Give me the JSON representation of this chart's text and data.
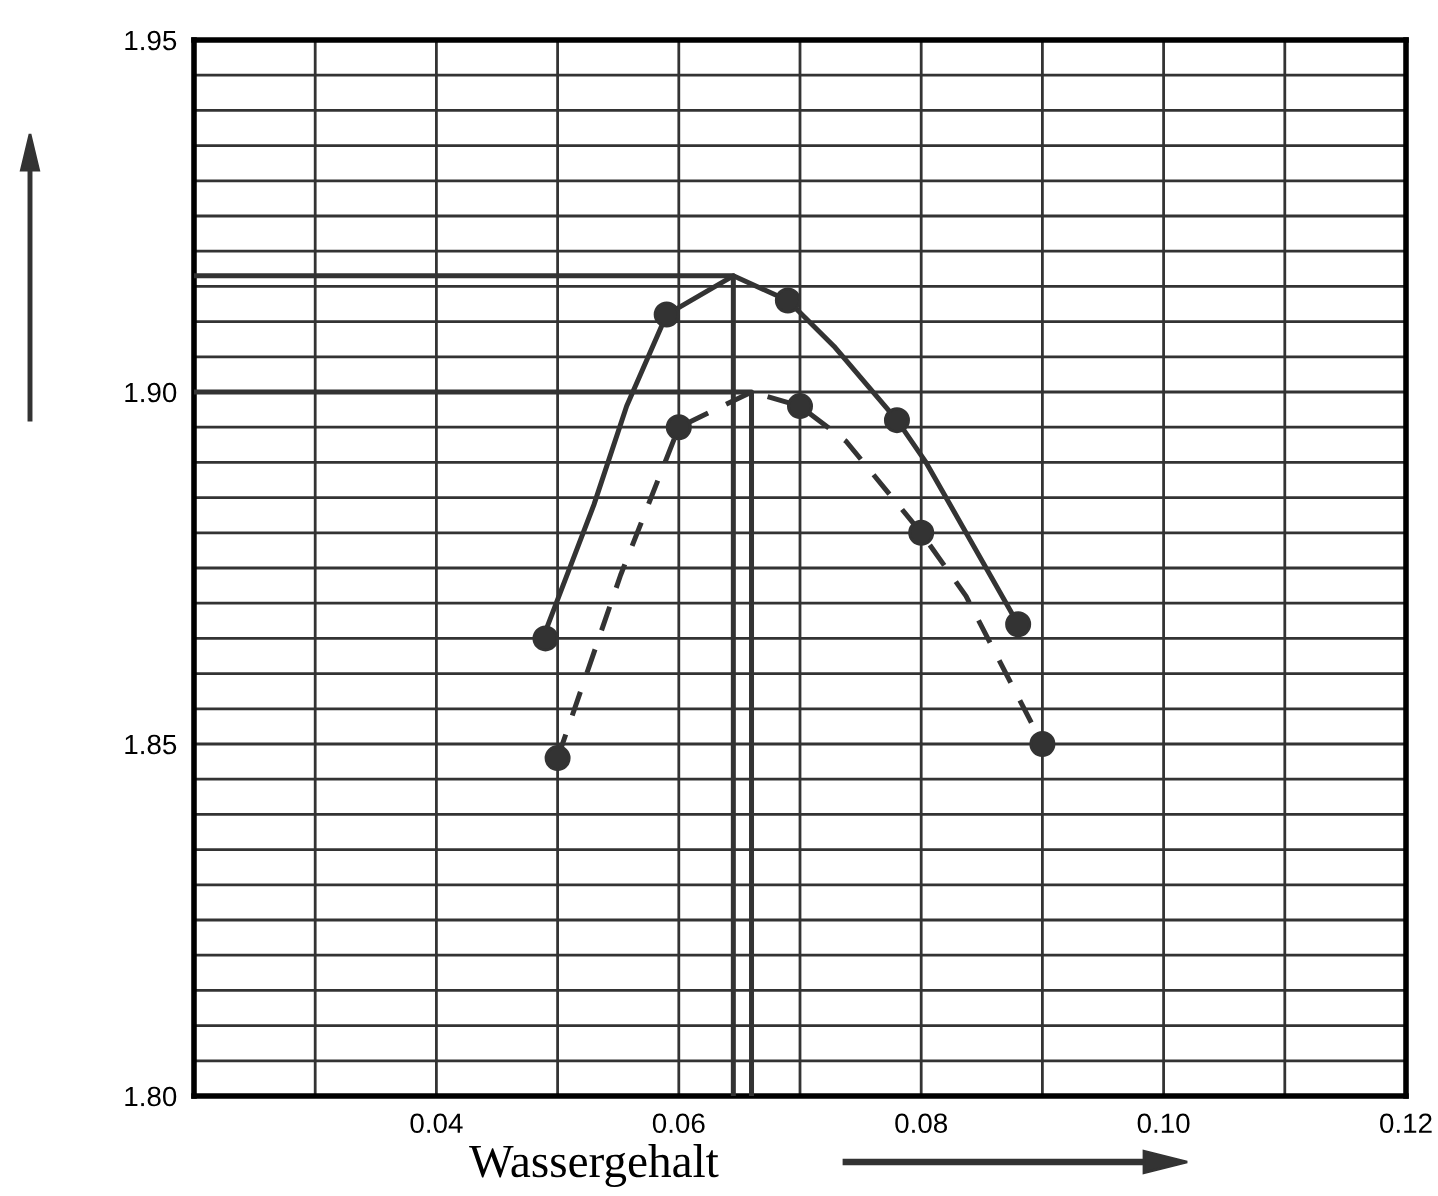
{
  "chart_data": {
    "type": "scatter",
    "xlabel": "Wassergehalt",
    "series": [
      {
        "type": "line",
        "color": "#333333",
        "line_style": "solid",
        "marker": "none",
        "x": [
          0.049,
          0.053,
          0.0557,
          0.059,
          0.0645,
          0.069,
          0.0728,
          0.078,
          0.0804,
          0.088
        ],
        "values": [
          1.866,
          1.884,
          1.898,
          1.911,
          1.9165,
          1.913,
          1.9065,
          1.896,
          1.89,
          1.867
        ]
      },
      {
        "type": "line",
        "color": "#333333",
        "line_style": "dashed",
        "marker": "none",
        "x": [
          0.05,
          0.0552,
          0.06,
          0.066,
          0.07,
          0.0738,
          0.08,
          0.0837,
          0.09
        ],
        "values": [
          1.848,
          1.874,
          1.895,
          1.9,
          1.898,
          1.893,
          1.88,
          1.871,
          1.85
        ]
      },
      {
        "type": "line",
        "color": "#333333",
        "line_style": "solid",
        "marker": "none",
        "x": [
          0.02,
          0.0645,
          0.0645
        ],
        "values": [
          1.9165,
          1.9165,
          1.8
        ]
      },
      {
        "type": "line",
        "color": "#333333",
        "line_style": "solid",
        "marker": "none",
        "x": [
          0.02,
          0.066,
          0.066
        ],
        "values": [
          1.9,
          1.9,
          1.8
        ]
      },
      {
        "color": "#333333",
        "marker": "circle",
        "x": [
          0.049,
          0.059,
          0.069,
          0.078,
          0.088
        ],
        "values": [
          1.865,
          1.911,
          1.913,
          1.896,
          1.867
        ]
      },
      {
        "color": "#333333",
        "marker": "circle",
        "x": [
          0.05,
          0.06,
          0.07,
          0.08,
          0.09
        ],
        "values": [
          1.848,
          1.895,
          1.898,
          1.88,
          1.85
        ]
      }
    ],
    "xlim": [
      0.02,
      0.12
    ],
    "xticks": [
      {
        "value": 0.02,
        "label": null
      },
      {
        "value": 0.03,
        "label": null
      },
      0.04,
      {
        "value": 0.05,
        "label": null
      },
      0.06,
      {
        "value": 0.07,
        "label": null
      },
      0.08,
      {
        "value": 0.09,
        "label": null
      },
      "0.10",
      {
        "value": 0.11,
        "label": null
      },
      0.12
    ],
    "ylim": [
      1.8,
      1.95
    ],
    "yticks": [
      "1.80",
      {
        "value": 1.805,
        "label": null
      },
      {
        "value": 1.81,
        "label": null
      },
      {
        "value": 1.815,
        "label": null
      },
      {
        "value": 1.82,
        "label": null
      },
      {
        "value": 1.825,
        "label": null
      },
      {
        "value": 1.83,
        "label": null
      },
      {
        "value": 1.835,
        "label": null
      },
      {
        "value": 1.84,
        "label": null
      },
      {
        "value": 1.845,
        "label": null
      },
      1.85,
      {
        "value": 1.855,
        "label": null
      },
      {
        "value": 1.86,
        "label": null
      },
      {
        "value": 1.865,
        "label": null
      },
      {
        "value": 1.87,
        "label": null
      },
      {
        "value": 1.875,
        "label": null
      },
      {
        "value": 1.88,
        "label": null
      },
      {
        "value": 1.885,
        "label": null
      },
      {
        "value": 1.89,
        "label": null
      },
      {
        "value": 1.895,
        "label": null
      },
      "1.90",
      {
        "value": 1.905,
        "label": null
      },
      {
        "value": 1.91,
        "label": null
      },
      {
        "value": 1.915,
        "label": null
      },
      {
        "value": 1.92,
        "label": null
      },
      {
        "value": 1.925,
        "label": null
      },
      {
        "value": 1.93,
        "label": null
      },
      {
        "value": 1.935,
        "label": null
      },
      {
        "value": 1.94,
        "label": null
      },
      {
        "value": 1.945,
        "label": null
      },
      1.95
    ],
    "grid": true,
    "legend": false
  }
}
